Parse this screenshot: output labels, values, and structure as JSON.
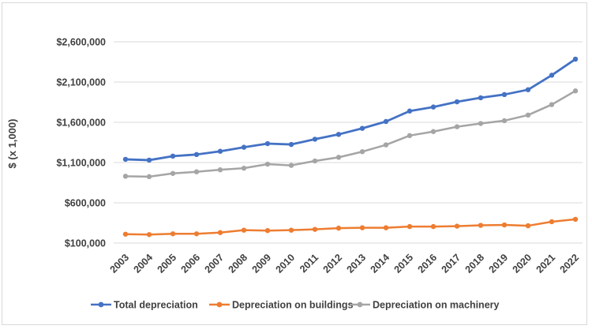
{
  "chart_data": {
    "type": "line",
    "title": "",
    "x_axis": {
      "tick_labels": [
        "2003",
        "2004",
        "2005",
        "2006",
        "2007",
        "2008",
        "2009",
        "2010",
        "2011",
        "2012",
        "2013",
        "2014",
        "2015",
        "2016",
        "2017",
        "2018",
        "2019",
        "2020",
        "2021",
        "2022"
      ],
      "label_rotation_deg": -45
    },
    "y_axis": {
      "label": "$ (x 1,000)",
      "min": 100000,
      "max": 2600000,
      "tick_interval": 500000,
      "tick_labels": [
        "$100,000",
        "$600,000",
        "$1,100,000",
        "$1,600,000",
        "$2,100,000",
        "$2,600,000"
      ]
    },
    "grid": "horizontal",
    "legend_position": "bottom",
    "series": [
      {
        "name": "Total depreciation",
        "color": "#4472C4",
        "values": [
          1140000,
          1130000,
          1180000,
          1200000,
          1240000,
          1290000,
          1335000,
          1325000,
          1390000,
          1450000,
          1525000,
          1610000,
          1740000,
          1790000,
          1855000,
          1905000,
          1945000,
          2005000,
          2185000,
          2385000
        ]
      },
      {
        "name": "Depreciation on buildings",
        "color": "#ED7D31",
        "values": [
          210000,
          205000,
          215000,
          215000,
          230000,
          260000,
          255000,
          260000,
          270000,
          285000,
          290000,
          290000,
          305000,
          305000,
          310000,
          320000,
          325000,
          315000,
          365000,
          395000
        ]
      },
      {
        "name": "Depreciation on machinery",
        "color": "#A5A5A5",
        "values": [
          930000,
          925000,
          965000,
          985000,
          1010000,
          1030000,
          1080000,
          1065000,
          1120000,
          1165000,
          1235000,
          1320000,
          1435000,
          1485000,
          1545000,
          1585000,
          1620000,
          1690000,
          1820000,
          1990000
        ]
      }
    ],
    "colors": {
      "gridline": "#D9D9D9",
      "border": "#D9D9D9",
      "text": "#404040",
      "background": "#FFFFFF"
    }
  }
}
